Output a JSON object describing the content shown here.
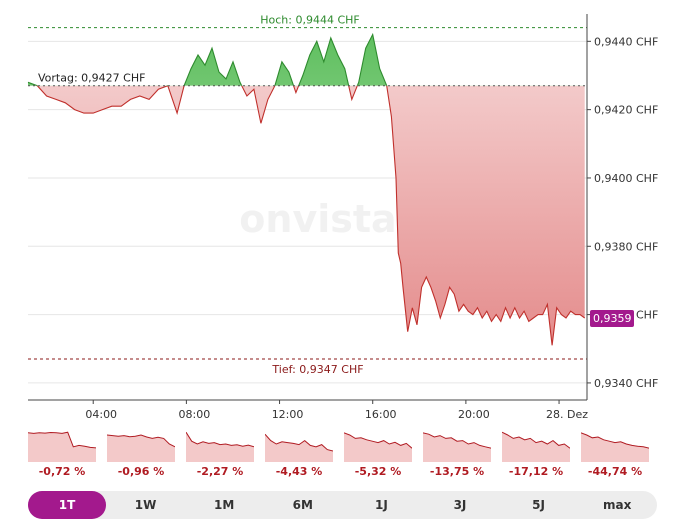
{
  "chart_data": {
    "type": "area",
    "watermark": "onvista",
    "high_label": "Hoch: 0,9444 CHF",
    "low_label": "Tief: 0,9347 CHF",
    "prev_close_label": "Vortag: 0,9427 CHF",
    "current_label": "0,9359",
    "high": 0.9444,
    "low": 0.9347,
    "prev_close": 0.9427,
    "current": 0.9359,
    "ylim": [
      0.9335,
      0.9448
    ],
    "y_ticks": [
      {
        "value": 0.944,
        "label": "0,9440 CHF"
      },
      {
        "value": 0.942,
        "label": "0,9420 CHF"
      },
      {
        "value": 0.94,
        "label": "0,9400 CHF"
      },
      {
        "value": 0.938,
        "label": "0,9380 CHF"
      },
      {
        "value": 0.936,
        "label": "0,9360 CHF"
      },
      {
        "value": 0.934,
        "label": "0,9340 CHF"
      }
    ],
    "xlim": [
      1.2,
      25.2
    ],
    "x_ticks": [
      {
        "value": 4,
        "label": "04:00"
      },
      {
        "value": 8,
        "label": "08:00"
      },
      {
        "value": 12,
        "label": "12:00"
      },
      {
        "value": 16,
        "label": "16:00"
      },
      {
        "value": 20,
        "label": "20:00"
      },
      {
        "value": 24,
        "label": "28. Dez"
      }
    ],
    "series": [
      {
        "x": [
          1.2,
          1.6,
          2.0,
          2.4,
          2.8,
          3.2,
          3.6,
          4.0,
          4.4,
          4.8,
          5.2,
          5.6,
          6.0,
          6.4,
          6.8,
          7.2,
          7.6,
          7.9,
          8.2,
          8.5,
          8.8,
          9.1,
          9.4,
          9.7,
          10.0,
          10.3,
          10.6,
          10.9,
          11.2,
          11.5,
          11.8,
          12.1,
          12.4,
          12.7,
          13.0,
          13.3,
          13.6,
          13.9,
          14.2,
          14.5,
          14.8,
          15.1,
          15.4,
          15.7,
          16.0,
          16.3,
          16.6,
          16.8,
          17.0,
          17.1,
          17.2,
          17.3,
          17.5,
          17.7,
          17.9,
          18.1,
          18.3,
          18.5,
          18.7,
          18.9,
          19.1,
          19.3,
          19.5,
          19.7,
          19.9,
          20.1,
          20.3,
          20.5,
          20.7,
          20.9,
          21.1,
          21.3,
          21.5,
          21.7,
          21.9,
          22.1,
          22.3,
          22.5,
          22.7,
          22.9,
          23.1,
          23.3,
          23.5,
          23.7,
          23.9,
          24.1,
          24.3,
          24.5,
          24.7,
          24.9,
          25.1
        ],
        "values": [
          0.9428,
          0.9427,
          0.9424,
          0.9423,
          0.9422,
          0.942,
          0.9419,
          0.9419,
          0.942,
          0.9421,
          0.9421,
          0.9423,
          0.9424,
          0.9423,
          0.9426,
          0.9427,
          0.9419,
          0.9427,
          0.9432,
          0.9436,
          0.9433,
          0.9438,
          0.9431,
          0.9429,
          0.9434,
          0.9428,
          0.9424,
          0.9426,
          0.9416,
          0.9423,
          0.9427,
          0.9434,
          0.9431,
          0.9425,
          0.943,
          0.9436,
          0.944,
          0.9434,
          0.9441,
          0.9436,
          0.9432,
          0.9423,
          0.9428,
          0.9438,
          0.9442,
          0.9432,
          0.9427,
          0.9418,
          0.94,
          0.9378,
          0.9375,
          0.9368,
          0.9355,
          0.9362,
          0.9357,
          0.9368,
          0.9371,
          0.9368,
          0.9364,
          0.9359,
          0.9363,
          0.9368,
          0.9366,
          0.9361,
          0.9363,
          0.9361,
          0.936,
          0.9362,
          0.9359,
          0.9361,
          0.9358,
          0.936,
          0.9358,
          0.9362,
          0.9359,
          0.9362,
          0.9359,
          0.9361,
          0.9358,
          0.9359,
          0.936,
          0.936,
          0.9363,
          0.9351,
          0.9362,
          0.936,
          0.9359,
          0.9361,
          0.936,
          0.936,
          0.9359
        ]
      }
    ],
    "grid": true,
    "high_color": "#2e8b2e",
    "low_color": "#8b1a1a",
    "up_color": "#3aa13a",
    "down_color": "#c0302c",
    "current_badge_color": "#a3198d"
  },
  "performance_tiles": [
    {
      "label": "-0,72 %",
      "values": [
        0.9,
        0.88,
        0.9,
        0.89,
        0.91,
        0.9,
        0.88,
        0.92,
        0.4,
        0.45,
        0.42,
        0.38,
        0.36
      ]
    },
    {
      "label": "-0,96 %",
      "values": [
        0.82,
        0.8,
        0.78,
        0.8,
        0.76,
        0.78,
        0.82,
        0.75,
        0.7,
        0.74,
        0.7,
        0.5,
        0.4
      ]
    },
    {
      "label": "-2,27 %",
      "values": [
        0.92,
        0.6,
        0.5,
        0.58,
        0.52,
        0.55,
        0.48,
        0.5,
        0.45,
        0.47,
        0.42,
        0.46,
        0.4
      ]
    },
    {
      "label": "-4,43 %",
      "values": [
        0.85,
        0.62,
        0.5,
        0.58,
        0.55,
        0.52,
        0.48,
        0.62,
        0.45,
        0.4,
        0.48,
        0.3,
        0.25
      ]
    },
    {
      "label": "-5,32 %",
      "values": [
        0.9,
        0.82,
        0.7,
        0.72,
        0.65,
        0.6,
        0.55,
        0.62,
        0.5,
        0.56,
        0.45,
        0.52,
        0.35
      ]
    },
    {
      "label": "-13,75 %",
      "values": [
        0.9,
        0.85,
        0.75,
        0.8,
        0.7,
        0.72,
        0.6,
        0.62,
        0.5,
        0.55,
        0.45,
        0.4,
        0.35
      ]
    },
    {
      "label": "-17,12 %",
      "values": [
        0.92,
        0.82,
        0.7,
        0.75,
        0.65,
        0.7,
        0.55,
        0.6,
        0.5,
        0.62,
        0.45,
        0.5,
        0.35
      ]
    },
    {
      "label": "-44,74 %",
      "values": [
        0.9,
        0.82,
        0.72,
        0.75,
        0.65,
        0.6,
        0.55,
        0.58,
        0.5,
        0.45,
        0.42,
        0.4,
        0.35
      ]
    }
  ],
  "ranges": [
    {
      "label": "1T",
      "active": true
    },
    {
      "label": "1W",
      "active": false
    },
    {
      "label": "1M",
      "active": false
    },
    {
      "label": "6M",
      "active": false
    },
    {
      "label": "1J",
      "active": false
    },
    {
      "label": "3J",
      "active": false
    },
    {
      "label": "5J",
      "active": false
    },
    {
      "label": "max",
      "active": false
    }
  ]
}
